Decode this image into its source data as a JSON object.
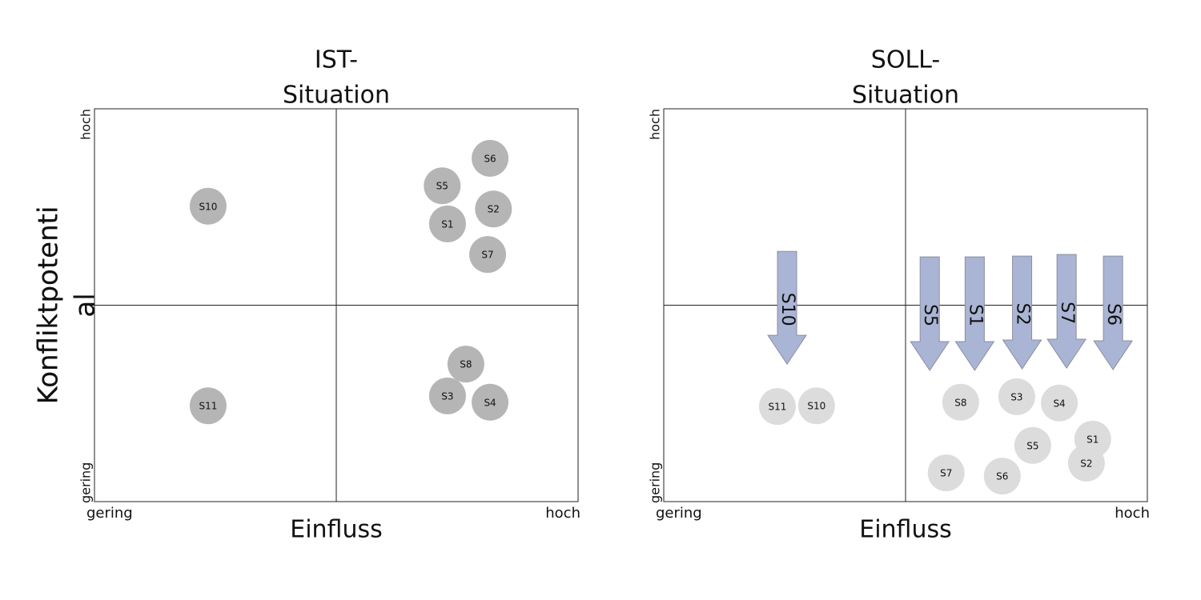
{
  "chart_data": [
    {
      "type": "scatter",
      "title": [
        "IST-",
        "Situation"
      ],
      "x_label": "Einfluss",
      "y_label": [
        "Konfliktpotenti",
        "al"
      ],
      "xlim": [
        0,
        10
      ],
      "ylim": [
        0,
        10
      ],
      "xticks": [
        {
          "value": 0,
          "label": "gering"
        },
        {
          "value": 10,
          "label": "hoch"
        }
      ],
      "yticks": [
        {
          "value": 0,
          "label": "gering"
        },
        {
          "value": 10,
          "label": "hoch"
        }
      ],
      "color": "#b5b5b5",
      "point_labels": [
        "S10",
        "S11",
        "S5",
        "S6",
        "S1",
        "S2",
        "S7",
        "S8",
        "S3",
        "S4"
      ],
      "x": [
        2.35,
        2.35,
        7.19,
        8.18,
        7.3,
        8.25,
        8.13,
        7.68,
        7.3,
        8.18
      ],
      "values": [
        7.52,
        2.44,
        8.04,
        8.74,
        7.07,
        7.45,
        6.29,
        3.5,
        2.69,
        2.53
      ]
    },
    {
      "type": "scatter",
      "title": [
        "SOLL-",
        "Situation"
      ],
      "x_label": "Einfluss",
      "y_label": [
        "Konfliktpotenti",
        "al"
      ],
      "xlim": [
        0,
        10
      ],
      "ylim": [
        0,
        10
      ],
      "xticks": [
        {
          "value": 0,
          "label": "gering"
        },
        {
          "value": 10,
          "label": "hoch"
        }
      ],
      "yticks": [
        {
          "value": 0,
          "label": "gering"
        },
        {
          "value": 10,
          "label": "hoch"
        }
      ],
      "color": "#dcdcdc",
      "arrow_color": "#aab4d4",
      "point_labels": [
        "S11",
        "S10",
        "S8",
        "S3",
        "S4",
        "S1",
        "S5",
        "S2",
        "S7",
        "S6"
      ],
      "x": [
        2.35,
        3.16,
        6.14,
        7.3,
        8.18,
        8.87,
        7.63,
        8.74,
        5.84,
        7.0
      ],
      "values": [
        2.42,
        2.44,
        2.53,
        2.67,
        2.51,
        1.59,
        1.43,
        0.98,
        0.73,
        0.65
      ],
      "arrows": [
        {
          "label": "S10",
          "x": 2.55,
          "y_start": 6.37,
          "y_end": 3.5
        },
        {
          "label": "S5",
          "x": 5.5,
          "y_start": 6.23,
          "y_end": 3.34
        },
        {
          "label": "S1",
          "x": 6.43,
          "y_start": 6.23,
          "y_end": 3.34
        },
        {
          "label": "S2",
          "x": 7.41,
          "y_start": 6.25,
          "y_end": 3.38
        },
        {
          "label": "S7",
          "x": 8.33,
          "y_start": 6.29,
          "y_end": 3.4
        },
        {
          "label": "S6",
          "x": 9.29,
          "y_start": 6.25,
          "y_end": 3.36
        }
      ]
    }
  ]
}
